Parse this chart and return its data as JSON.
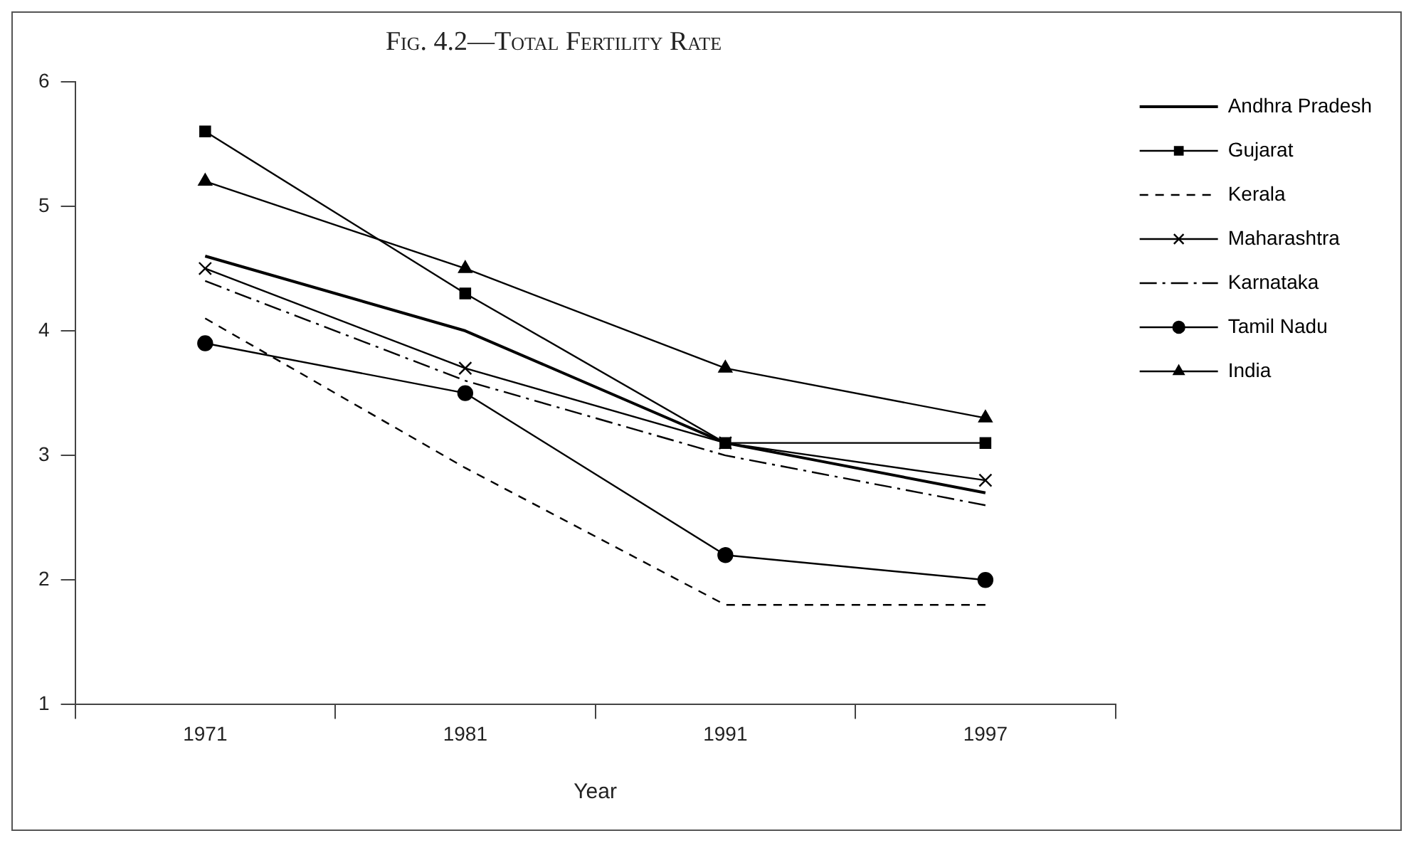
{
  "chart_data": {
    "type": "line",
    "title": "Fig. 4.2—Total Fertility Rate",
    "xlabel": "Year",
    "categories": [
      "1971",
      "1981",
      "1991",
      "1997"
    ],
    "ylim": [
      1,
      6
    ],
    "yticks": [
      1,
      2,
      3,
      4,
      5,
      6
    ],
    "grid": false,
    "legend": "right",
    "series": [
      {
        "name": "Andhra Pradesh",
        "color": "#000000",
        "values": [
          4.6,
          4.0,
          3.1,
          2.7
        ],
        "marker": "none",
        "line_style": "solid"
      },
      {
        "name": "Gujarat",
        "color": "#000000",
        "values": [
          5.6,
          4.3,
          3.1,
          3.1
        ],
        "marker": "square",
        "line_style": "solid"
      },
      {
        "name": "Kerala",
        "color": "#000000",
        "values": [
          4.1,
          2.9,
          1.8,
          1.8
        ],
        "marker": "none",
        "line_style": "dashed"
      },
      {
        "name": "Maharashtra",
        "color": "#000000",
        "values": [
          4.5,
          3.7,
          3.1,
          2.8
        ],
        "marker": "cross",
        "line_style": "solid"
      },
      {
        "name": "Karnataka",
        "color": "#000000",
        "values": [
          4.4,
          3.6,
          3.0,
          2.6
        ],
        "marker": "none",
        "line_style": "dashdot"
      },
      {
        "name": "Tamil Nadu",
        "color": "#000000",
        "values": [
          3.9,
          3.5,
          2.2,
          2.0
        ],
        "marker": "circle",
        "line_style": "solid"
      },
      {
        "name": "India",
        "color": "#000000",
        "values": [
          5.2,
          4.5,
          3.7,
          3.3
        ],
        "marker": "triangle",
        "line_style": "solid"
      }
    ]
  }
}
